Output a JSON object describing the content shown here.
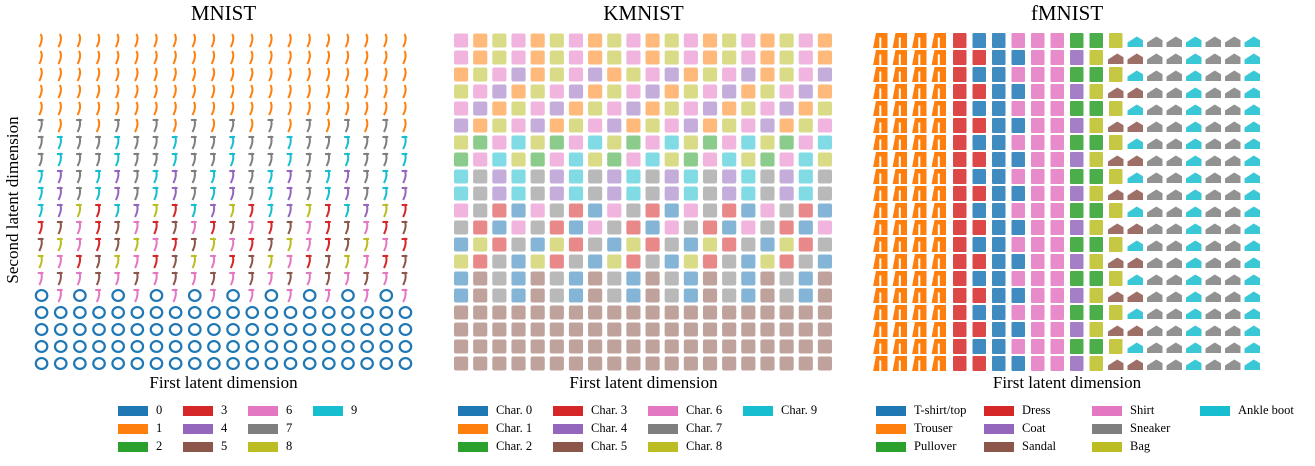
{
  "panels": [
    {
      "title": "MNIST",
      "x_label": "First latent dimension",
      "y_label": "Second latent dimension",
      "legend": [
        {
          "label": "0",
          "color": "#1f77b4"
        },
        {
          "label": "1",
          "color": "#ff7f0e"
        },
        {
          "label": "2",
          "color": "#2ca02c"
        },
        {
          "label": "3",
          "color": "#d62728"
        },
        {
          "label": "4",
          "color": "#9467bd"
        },
        {
          "label": "5",
          "color": "#8c564b"
        },
        {
          "label": "6",
          "color": "#e377c2"
        },
        {
          "label": "7",
          "color": "#7f7f7f"
        },
        {
          "label": "8",
          "color": "#bcbd22"
        },
        {
          "label": "9",
          "color": "#17becf"
        }
      ]
    },
    {
      "title": "KMNIST",
      "x_label": "First latent dimension",
      "legend": [
        {
          "label": "Char. 0",
          "color": "#1f77b4"
        },
        {
          "label": "Char. 1",
          "color": "#ff7f0e"
        },
        {
          "label": "Char. 2",
          "color": "#2ca02c"
        },
        {
          "label": "Char. 3",
          "color": "#d62728"
        },
        {
          "label": "Char. 4",
          "color": "#9467bd"
        },
        {
          "label": "Char. 5",
          "color": "#8c564b"
        },
        {
          "label": "Char. 6",
          "color": "#e377c2"
        },
        {
          "label": "Char. 7",
          "color": "#7f7f7f"
        },
        {
          "label": "Char. 8",
          "color": "#bcbd22"
        },
        {
          "label": "Char. 9",
          "color": "#17becf"
        }
      ]
    },
    {
      "title": "fMNIST",
      "x_label": "First latent dimension",
      "legend": [
        {
          "label": "T-shirt/top",
          "color": "#1f77b4"
        },
        {
          "label": "Trouser",
          "color": "#ff7f0e"
        },
        {
          "label": "Pullover",
          "color": "#2ca02c"
        },
        {
          "label": "Dress",
          "color": "#d62728"
        },
        {
          "label": "Coat",
          "color": "#9467bd"
        },
        {
          "label": "Sandal",
          "color": "#8c564b"
        },
        {
          "label": "Shirt",
          "color": "#e377c2"
        },
        {
          "label": "Sneaker",
          "color": "#7f7f7f"
        },
        {
          "label": "Bag",
          "color": "#bcbd22"
        },
        {
          "label": "Ankle boot",
          "color": "#17becf"
        }
      ]
    }
  ]
}
